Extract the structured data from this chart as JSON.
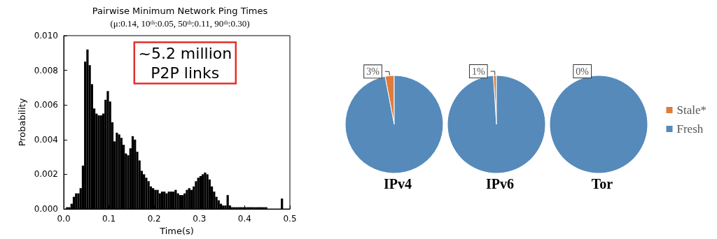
{
  "chart_data": [
    {
      "type": "histogram",
      "title": "Pairwise Minimum Network Ping Times",
      "subtitle": "(μ:0.14, 10ᵗʰ:0.05, 50ᵗʰ:0.11, 90ᵗʰ:0.30)",
      "xlabel": "Time(s)",
      "ylabel": "Probability",
      "color": "#000000",
      "bins": [
        0,
        0.005,
        0.01,
        0.015,
        0.02,
        0.025,
        0.03,
        0.035,
        0.04,
        0.045,
        0.05,
        0.055,
        0.06,
        0.065,
        0.07,
        0.075,
        0.08,
        0.085,
        0.09,
        0.095,
        0.1,
        0.105,
        0.11,
        0.115,
        0.12,
        0.125,
        0.13,
        0.135,
        0.14,
        0.145,
        0.15,
        0.155,
        0.16,
        0.165,
        0.17,
        0.175,
        0.18,
        0.185,
        0.19,
        0.195,
        0.2,
        0.205,
        0.21,
        0.215,
        0.22,
        0.225,
        0.23,
        0.235,
        0.24,
        0.245,
        0.25,
        0.255,
        0.26,
        0.265,
        0.27,
        0.275,
        0.28,
        0.285,
        0.29,
        0.295,
        0.3,
        0.305,
        0.31,
        0.315,
        0.32,
        0.325,
        0.33,
        0.335,
        0.34,
        0.345,
        0.35,
        0.355,
        0.36,
        0.365,
        0.37,
        0.375,
        0.38,
        0.385,
        0.39,
        0.395,
        0.4,
        0.405,
        0.41,
        0.415,
        0.42,
        0.425,
        0.43,
        0.435,
        0.44,
        0.445,
        0.45,
        0.455,
        0.46,
        0.465,
        0.47,
        0.475,
        0.48,
        0.485,
        0.49,
        0.495,
        0.5
      ],
      "values": [
        0,
        0.0001,
        0.0001,
        0.0003,
        0.0007,
        0.0009,
        0.0009,
        0.0012,
        0.0025,
        0.0085,
        0.0092,
        0.0083,
        0.0072,
        0.0058,
        0.0055,
        0.0054,
        0.0054,
        0.0055,
        0.0063,
        0.0068,
        0.0062,
        0.005,
        0.0039,
        0.0044,
        0.0043,
        0.0041,
        0.0037,
        0.0032,
        0.0031,
        0.0035,
        0.0042,
        0.004,
        0.0033,
        0.0028,
        0.0022,
        0.002,
        0.0018,
        0.0016,
        0.0013,
        0.0012,
        0.0011,
        0.0011,
        0.0009,
        0.001,
        0.001,
        0.0009,
        0.001,
        0.001,
        0.001,
        0.0011,
        0.0009,
        0.0008,
        0.0008,
        0.0009,
        0.0011,
        0.0012,
        0.0011,
        0.0013,
        0.0016,
        0.0018,
        0.0019,
        0.002,
        0.0021,
        0.002,
        0.0017,
        0.0013,
        0.001,
        0.0007,
        0.0005,
        0.0003,
        0.0002,
        0.0002,
        0.0008,
        0.0002,
        0.0001,
        0.0001,
        0.0001,
        0.0001,
        0.0001,
        0.0001,
        0.0001,
        0.0001,
        0.0001,
        0.0001,
        0.0001,
        0.0001,
        0.0001,
        0.0001,
        0.0001,
        0.0001,
        0,
        0,
        0,
        0,
        0,
        0,
        0.0006,
        0,
        0,
        0
      ],
      "xlim": [
        0,
        0.5
      ],
      "xticks": [
        {
          "value": 0,
          "label": "0.0"
        },
        0.1,
        0.2,
        0.3,
        0.4,
        0.5
      ],
      "ylim": [
        0,
        0.01
      ],
      "yticks": [
        {
          "value": 0,
          "label": "0.000"
        },
        {
          "value": 0.002,
          "label": "0.002"
        },
        {
          "value": 0.004,
          "label": "0.004"
        },
        {
          "value": 0.006,
          "label": "0.006"
        },
        {
          "value": 0.008,
          "label": "0.008"
        },
        {
          "value": 0.01,
          "label": "0.010"
        }
      ],
      "annotations": [
        "~5.2 million\nP2P links"
      ]
    },
    {
      "type": "pie",
      "categories": [
        "Stale*",
        "Fresh"
      ],
      "colors": [
        "#e07b3c",
        "#558abb"
      ],
      "legend": "right",
      "series": [
        {
          "name": "IPv4",
          "values": [
            3,
            97
          ],
          "value_labels": [
            "3%",
            null
          ]
        },
        {
          "name": "IPv6",
          "values": [
            1,
            99
          ],
          "value_labels": [
            "1%",
            null
          ]
        },
        {
          "name": "Tor",
          "values": [
            0,
            100
          ],
          "value_labels": [
            "0%",
            null
          ]
        }
      ]
    }
  ]
}
